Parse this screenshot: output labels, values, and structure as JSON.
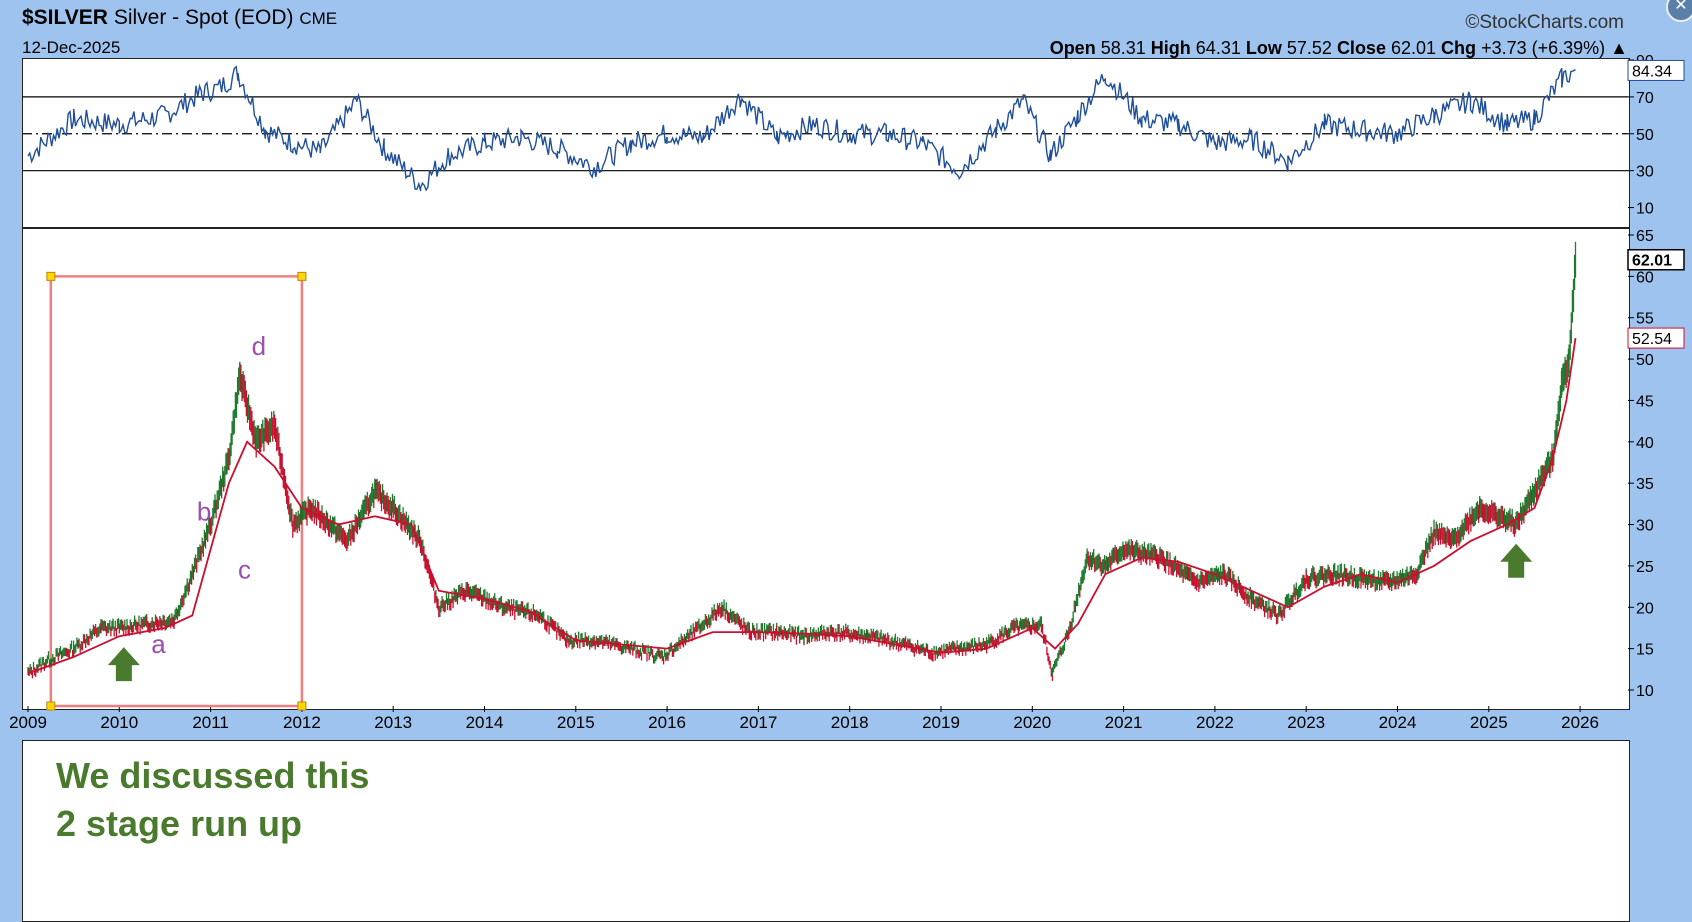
{
  "header": {
    "symbol": "$SILVER",
    "name": "Silver - Spot (EOD)",
    "exchange": "CME",
    "date": "12-Dec-2025",
    "brand": "©StockCharts.com",
    "open_label": "Open",
    "open": "58.31",
    "high_label": "High",
    "high": "64.31",
    "low_label": "Low",
    "low": "57.52",
    "close_label": "Close",
    "close": "62.01",
    "chg_label": "Chg",
    "chg": "+3.73 (+6.39%)",
    "close_icon": "close-x-icon"
  },
  "colors": {
    "background": "#9ec3ee",
    "rsi_line": "#1f4e9a",
    "rsi_fill": "#5a86c8",
    "rsi_oversold_fill": "#e07a9a",
    "price_bar_up": "#1f7a2e",
    "price_bar_down": "#c8102e",
    "moving_average": "#c8102e",
    "highlight_box": "#f08080",
    "annotation_letters": "#9b4fb0",
    "note_text": "#4a7a2e",
    "arrow": "#4a7a2e"
  },
  "chart_data": [
    {
      "type": "line",
      "name": "rsi_panel",
      "ylim": [
        0,
        90
      ],
      "reference_lines": [
        70,
        50,
        30
      ],
      "yticks": [
        "90",
        "70",
        "50",
        "30",
        "10"
      ],
      "last_value_tag": "84.34",
      "x": [
        2009.0,
        2009.5,
        2010.0,
        2010.5,
        2010.9,
        2011.1,
        2011.3,
        2011.6,
        2011.9,
        2012.2,
        2012.6,
        2012.9,
        2013.3,
        2013.6,
        2014.0,
        2014.4,
        2014.8,
        2015.2,
        2015.6,
        2016.0,
        2016.4,
        2016.8,
        2017.2,
        2017.6,
        2018.0,
        2018.4,
        2018.8,
        2019.2,
        2019.6,
        2019.9,
        2020.2,
        2020.5,
        2020.8,
        2021.2,
        2021.6,
        2022.0,
        2022.4,
        2022.8,
        2023.2,
        2023.6,
        2024.0,
        2024.4,
        2024.8,
        2025.2,
        2025.5,
        2025.8,
        2025.95
      ],
      "values": [
        38,
        58,
        55,
        60,
        72,
        75,
        83,
        52,
        45,
        40,
        68,
        42,
        22,
        38,
        45,
        48,
        42,
        32,
        45,
        50,
        48,
        70,
        48,
        55,
        50,
        50,
        45,
        30,
        52,
        68,
        38,
        60,
        82,
        58,
        55,
        45,
        47,
        35,
        55,
        52,
        50,
        60,
        68,
        55,
        58,
        80,
        84.34
      ]
    },
    {
      "type": "line",
      "name": "price_panel",
      "ylim": [
        10,
        65
      ],
      "yticks": [
        "65",
        "60",
        "55",
        "50",
        "45",
        "40",
        "35",
        "30",
        "25",
        "20",
        "15",
        "10"
      ],
      "xticks": [
        "2009",
        "2010",
        "2011",
        "2012",
        "2013",
        "2014",
        "2015",
        "2016",
        "2017",
        "2018",
        "2019",
        "2020",
        "2021",
        "2022",
        "2023",
        "2024",
        "2025",
        "2026"
      ],
      "last_value_tag": "62.01",
      "ma_value_tag": "52.54",
      "price": {
        "x": [
          2009.0,
          2009.2,
          2009.5,
          2009.8,
          2010.0,
          2010.3,
          2010.6,
          2010.8,
          2011.0,
          2011.2,
          2011.32,
          2011.5,
          2011.7,
          2011.9,
          2012.1,
          2012.3,
          2012.5,
          2012.8,
          2013.0,
          2013.3,
          2013.5,
          2013.8,
          2014.2,
          2014.6,
          2014.9,
          2015.2,
          2015.6,
          2015.95,
          2016.3,
          2016.6,
          2016.9,
          2017.2,
          2017.5,
          2017.8,
          2018.2,
          2018.6,
          2018.9,
          2019.2,
          2019.5,
          2019.8,
          2020.1,
          2020.22,
          2020.4,
          2020.6,
          2020.8,
          2021.0,
          2021.4,
          2021.8,
          2022.1,
          2022.4,
          2022.7,
          2023.0,
          2023.3,
          2023.6,
          2023.9,
          2024.2,
          2024.4,
          2024.6,
          2024.9,
          2025.1,
          2025.3,
          2025.5,
          2025.7,
          2025.8,
          2025.88,
          2025.95
        ],
        "values": [
          12,
          13.5,
          15,
          17.5,
          17.5,
          18,
          18.5,
          24,
          30,
          38,
          48,
          40,
          42,
          30,
          32,
          30,
          28,
          34,
          32,
          28,
          20,
          22,
          20,
          19,
          16,
          16,
          15,
          14,
          17,
          20,
          17,
          17,
          16.5,
          17,
          16.5,
          15.5,
          14.5,
          15,
          15.5,
          17.5,
          17.8,
          12,
          17,
          26,
          25,
          27,
          26,
          23,
          24,
          21,
          19,
          23.5,
          24,
          23.5,
          23,
          24,
          29,
          28,
          32,
          31,
          30,
          34,
          38,
          47,
          50,
          62.01
        ]
      },
      "moving_average": {
        "x": [
          2009.0,
          2009.5,
          2010.0,
          2010.5,
          2010.8,
          2011.0,
          2011.2,
          2011.4,
          2011.7,
          2012.0,
          2012.4,
          2012.8,
          2013.2,
          2013.5,
          2014.0,
          2014.5,
          2015.0,
          2015.5,
          2016.0,
          2016.5,
          2017.0,
          2017.5,
          2018.0,
          2018.5,
          2019.0,
          2019.5,
          2020.0,
          2020.25,
          2020.5,
          2020.8,
          2021.2,
          2021.6,
          2022.0,
          2022.4,
          2022.8,
          2023.2,
          2023.6,
          2024.0,
          2024.4,
          2024.8,
          2025.2,
          2025.5,
          2025.7,
          2025.85,
          2025.95
        ],
        "values": [
          12,
          14,
          16.5,
          17.5,
          19,
          27,
          35,
          40,
          37,
          32,
          30,
          31,
          30,
          22,
          21,
          19.5,
          16,
          15.5,
          15,
          17,
          17,
          16.8,
          16.5,
          15.5,
          14.5,
          15,
          17.5,
          15,
          18,
          24,
          26,
          25.5,
          24,
          22,
          20,
          22.5,
          24,
          23,
          25,
          28,
          30,
          32,
          38,
          45,
          52.54
        ]
      },
      "annotations": [
        "a",
        "b",
        "c",
        "d"
      ],
      "highlight_box": {
        "x_start": 2009.25,
        "x_end": 2012.0,
        "y_low": 10,
        "y_high": 60
      }
    }
  ],
  "note": {
    "line1": "We discussed this",
    "line2": "2 stage run up"
  }
}
